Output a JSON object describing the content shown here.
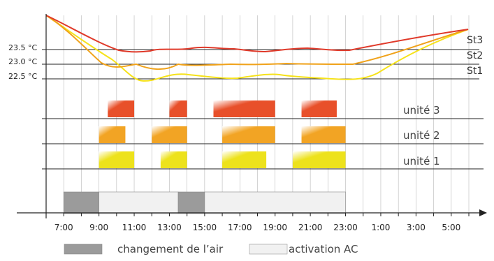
{
  "colors": {
    "st3": "#e03a2a",
    "st2": "#f0a21a",
    "st1": "#f6e21a",
    "unit3": "#e8502a",
    "unit2": "#f2a424",
    "unit1": "#ede21c",
    "air_change": "#9b9b9b",
    "ac_activation": "#f1f1f1",
    "grid": "#b8b8b8",
    "axis": "#222222"
  },
  "temperature_levels": [
    {
      "label": "23.5 °C",
      "value": 23.5
    },
    {
      "label": "23.0 °C",
      "value": 23.0
    },
    {
      "label": "22.5 °C",
      "value": 22.5
    }
  ],
  "series_labels": {
    "st3": "St3",
    "st2": "St2",
    "st1": "St1"
  },
  "unit_rows": [
    {
      "label": "unité 3",
      "key": "unit3",
      "blocks": [
        [
          9.5,
          11.0
        ],
        [
          13.0,
          14.0
        ],
        [
          15.5,
          19.0
        ],
        [
          20.5,
          22.5
        ]
      ]
    },
    {
      "label": "unité 2",
      "key": "unit2",
      "blocks": [
        [
          9.0,
          10.5
        ],
        [
          12.0,
          14.0
        ],
        [
          16.0,
          19.0
        ],
        [
          20.5,
          23.0
        ]
      ]
    },
    {
      "label": "unité 1",
      "key": "unit1",
      "blocks": [
        [
          9.0,
          11.0
        ],
        [
          12.5,
          14.0
        ],
        [
          16.0,
          18.5
        ],
        [
          20.0,
          23.0
        ]
      ]
    }
  ],
  "timeline_blocks": [
    {
      "type": "air_change",
      "start": 7.0,
      "end": 9.0
    },
    {
      "type": "ac_activation",
      "start": 9.0,
      "end": 13.5
    },
    {
      "type": "air_change",
      "start": 13.5,
      "end": 15.0
    },
    {
      "type": "ac_activation",
      "start": 15.0,
      "end": 23.0
    }
  ],
  "time_axis": {
    "start_hour": 6,
    "end_hour": 30,
    "ticks": [
      "7:00",
      "9:00",
      "11:00",
      "13:00",
      "15:00",
      "17:00",
      "19:00",
      "21:00",
      "23:00",
      "1:00",
      "3:00",
      "5:00"
    ]
  },
  "legend": {
    "air_change": "changement de l’air",
    "ac_activation": "activation AC"
  }
}
